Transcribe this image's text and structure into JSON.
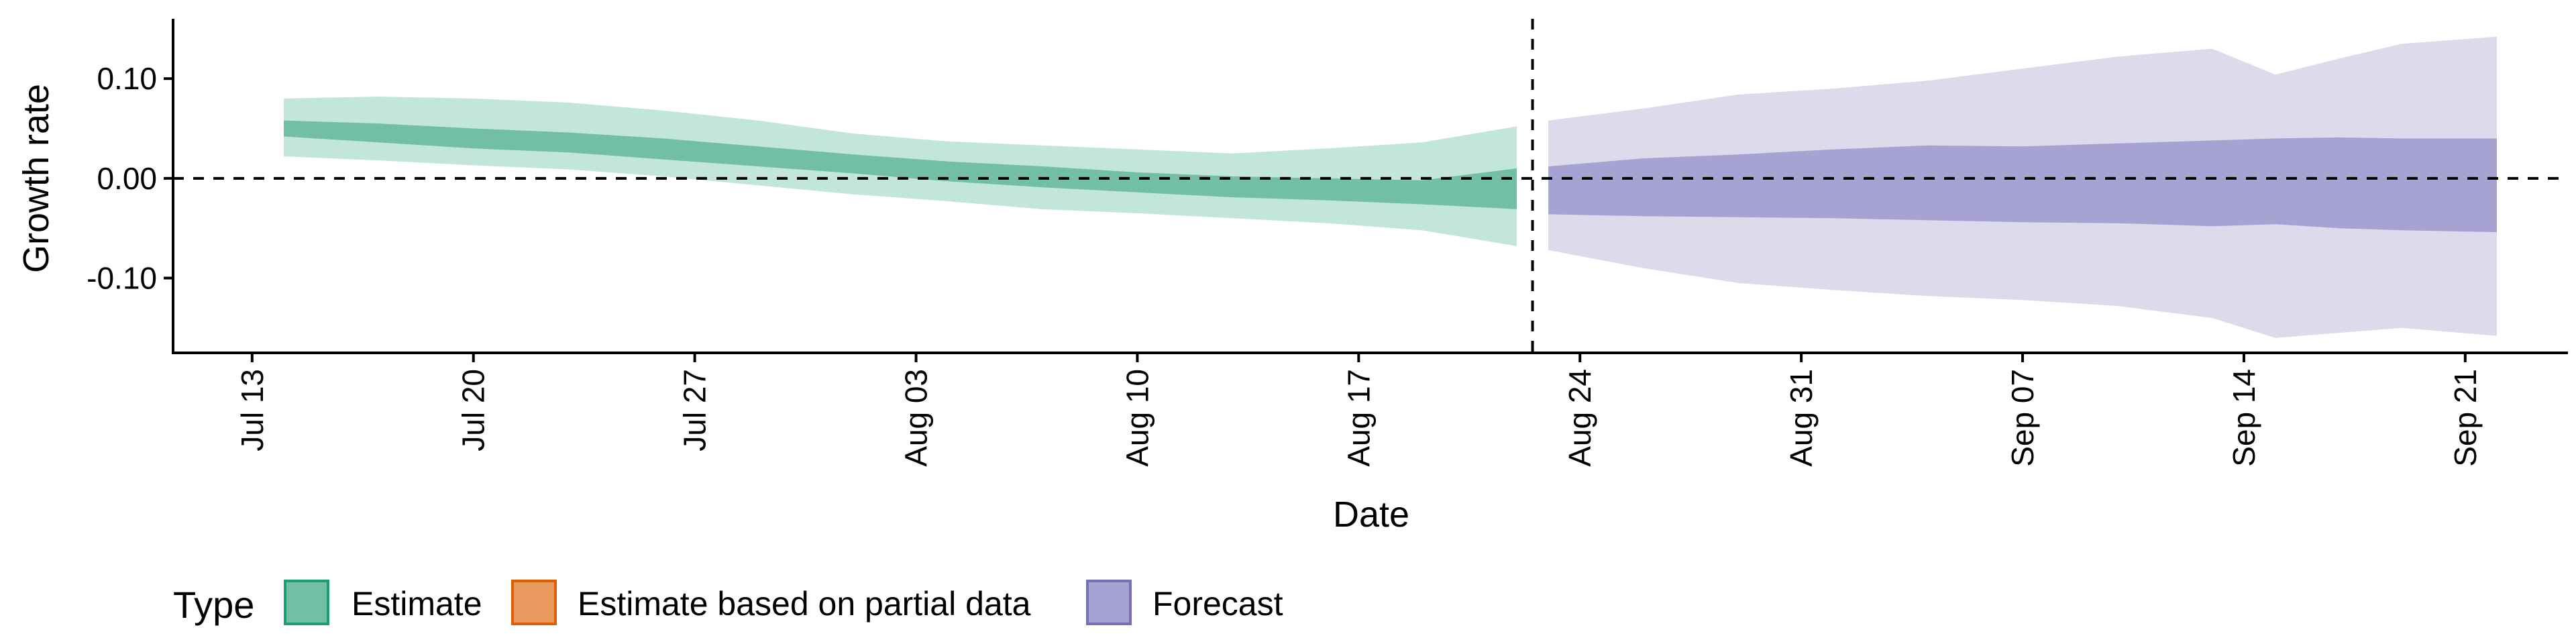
{
  "chart_data": {
    "type": "area",
    "xlabel": "Date",
    "ylabel": "Growth rate",
    "x_ticks": [
      "Jul 13",
      "Jul 20",
      "Jul 27",
      "Aug 03",
      "Aug 10",
      "Aug 17",
      "Aug 24",
      "Aug 31",
      "Sep 07",
      "Sep 14",
      "Sep 21"
    ],
    "y_ticks": [
      "0.10",
      "0.00",
      "-0.10"
    ],
    "xlim": [
      "2020-07-10T12:00",
      "2020-09-24T06:00"
    ],
    "ylim": [
      -0.175,
      0.16
    ],
    "reference_lines": {
      "horizontal_y": 0.0,
      "vertical_x": "2020-08-22T12:00"
    },
    "grid": false,
    "legend": {
      "title": "Type",
      "position": "bottom-left",
      "entries": [
        {
          "label": "Estimate",
          "fill": "#72bfa5",
          "border": "#1b9e77"
        },
        {
          "label": "Estimate based on partial data",
          "fill": "#e89a5e",
          "border": "#d95f02"
        },
        {
          "label": "Forecast",
          "fill": "#a6a3d2",
          "border": "#7570b3"
        }
      ]
    },
    "series": [
      {
        "name": "Estimate",
        "inner_color": "#72bfa5",
        "outer_color": "#c3e6da",
        "x": [
          "2020-07-14",
          "2020-07-17",
          "2020-07-20",
          "2020-07-23",
          "2020-07-26",
          "2020-07-29",
          "2020-08-01",
          "2020-08-04",
          "2020-08-07",
          "2020-08-10",
          "2020-08-13",
          "2020-08-16",
          "2020-08-19",
          "2020-08-22"
        ],
        "upper90": [
          0.08,
          0.082,
          0.08,
          0.076,
          0.068,
          0.058,
          0.045,
          0.037,
          0.033,
          0.029,
          0.025,
          0.03,
          0.036,
          0.052
        ],
        "upper50": [
          0.058,
          0.055,
          0.05,
          0.046,
          0.04,
          0.032,
          0.024,
          0.017,
          0.012,
          0.006,
          0.002,
          0.0,
          -0.002,
          0.01
        ],
        "lower50": [
          0.042,
          0.036,
          0.03,
          0.026,
          0.019,
          0.012,
          0.005,
          -0.003,
          -0.009,
          -0.014,
          -0.019,
          -0.022,
          -0.026,
          -0.031
        ],
        "lower90": [
          0.022,
          0.018,
          0.013,
          0.009,
          0.002,
          -0.007,
          -0.016,
          -0.023,
          -0.031,
          -0.035,
          -0.04,
          -0.045,
          -0.052,
          -0.068
        ]
      },
      {
        "name": "Forecast",
        "inner_color": "#a6a3d2",
        "outer_color": "#dcdaeb",
        "x": [
          "2020-08-23",
          "2020-08-26",
          "2020-08-29",
          "2020-09-01",
          "2020-09-04",
          "2020-09-07",
          "2020-09-10",
          "2020-09-13",
          "2020-09-15",
          "2020-09-17",
          "2020-09-19",
          "2020-09-22"
        ],
        "upper90": [
          0.058,
          0.07,
          0.084,
          0.09,
          0.098,
          0.11,
          0.122,
          0.13,
          0.104,
          0.12,
          0.135,
          0.142
        ],
        "upper50": [
          0.012,
          0.02,
          0.024,
          0.029,
          0.033,
          0.032,
          0.035,
          0.038,
          0.04,
          0.041,
          0.04,
          0.04
        ],
        "lower50": [
          -0.036,
          -0.038,
          -0.039,
          -0.04,
          -0.042,
          -0.044,
          -0.045,
          -0.048,
          -0.046,
          -0.05,
          -0.052,
          -0.054
        ],
        "lower90": [
          -0.072,
          -0.09,
          -0.105,
          -0.112,
          -0.118,
          -0.122,
          -0.128,
          -0.14,
          -0.16,
          -0.155,
          -0.15,
          -0.158
        ]
      }
    ]
  }
}
